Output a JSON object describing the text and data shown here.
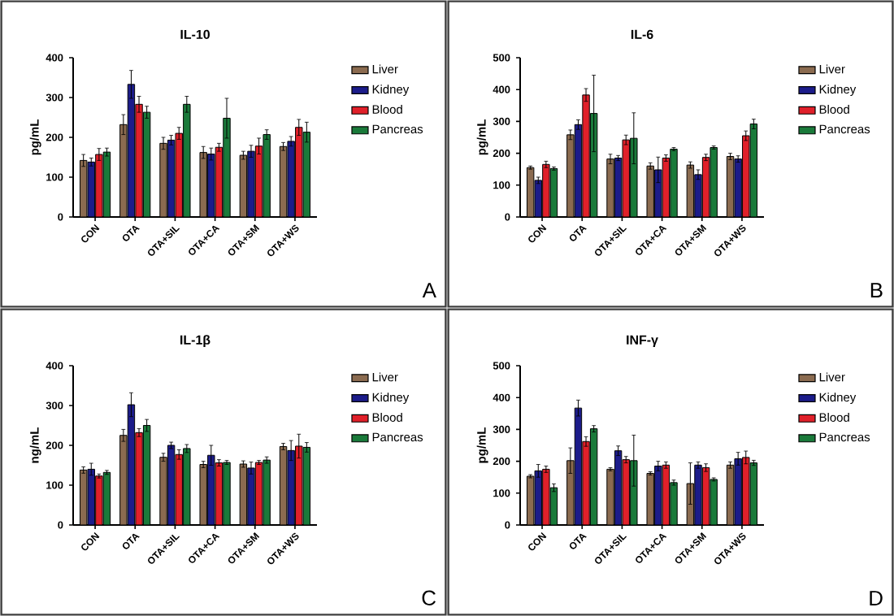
{
  "chart_data": [
    {
      "type": "bar",
      "title": "IL-10",
      "ylabel": "pg/mL",
      "categories": [
        "CON",
        "OTA",
        "OTA+SIL",
        "OTA+CA",
        "OTA+SM",
        "OTA+WS"
      ],
      "ylim": [
        0,
        400
      ],
      "yticks": [
        0,
        100,
        200,
        300,
        400
      ],
      "legend": "right",
      "annotations": [
        "A"
      ],
      "series": [
        {
          "name": "Liver",
          "color": "#8b6b50",
          "values": [
            142,
            232,
            185,
            162,
            155,
            177
          ],
          "errors": [
            15,
            25,
            15,
            15,
            10,
            10
          ]
        },
        {
          "name": "Kidney",
          "color": "#1c1c8a",
          "values": [
            138,
            333,
            193,
            158,
            165,
            190
          ],
          "errors": [
            10,
            35,
            12,
            15,
            15,
            12
          ]
        },
        {
          "name": "Blood",
          "color": "#e0202a",
          "values": [
            157,
            283,
            210,
            175,
            178,
            225
          ],
          "errors": [
            15,
            20,
            15,
            10,
            20,
            20
          ]
        },
        {
          "name": "Pancreas",
          "color": "#1a7a3a",
          "values": [
            163,
            263,
            283,
            248,
            207,
            213
          ],
          "errors": [
            10,
            15,
            20,
            50,
            12,
            25
          ]
        }
      ]
    },
    {
      "type": "bar",
      "title": "IL-6",
      "ylabel": "pg/mL",
      "categories": [
        "CON",
        "OTA",
        "OTA+SIL",
        "OTA+CA",
        "OTA+SM",
        "OTA+WS"
      ],
      "ylim": [
        0,
        500
      ],
      "yticks": [
        0,
        100,
        200,
        300,
        400,
        500
      ],
      "legend": "right",
      "annotations": [
        "B"
      ],
      "series": [
        {
          "name": "Liver",
          "color": "#8b6b50",
          "values": [
            155,
            258,
            182,
            160,
            163,
            190
          ],
          "errors": [
            5,
            15,
            15,
            10,
            10,
            10
          ]
        },
        {
          "name": "Kidney",
          "color": "#1c1c8a",
          "values": [
            115,
            290,
            185,
            148,
            133,
            182
          ],
          "errors": [
            10,
            15,
            8,
            40,
            15,
            10
          ]
        },
        {
          "name": "Blood",
          "color": "#e0202a",
          "values": [
            165,
            383,
            242,
            185,
            187,
            255
          ],
          "errors": [
            10,
            20,
            15,
            10,
            10,
            15
          ]
        },
        {
          "name": "Pancreas",
          "color": "#1a7a3a",
          "values": [
            152,
            325,
            247,
            213,
            218,
            292
          ],
          "errors": [
            5,
            120,
            80,
            5,
            5,
            15
          ]
        }
      ]
    },
    {
      "type": "bar",
      "title": "IL-1β",
      "ylabel": "ng/mL",
      "categories": [
        "CON",
        "OTA",
        "OTA+SIL",
        "OTA+CA",
        "OTA+SM",
        "OTA+WS"
      ],
      "ylim": [
        0,
        400
      ],
      "yticks": [
        0,
        100,
        200,
        300,
        400
      ],
      "legend": "right",
      "annotations": [
        "C"
      ],
      "series": [
        {
          "name": "Liver",
          "color": "#8b6b50",
          "values": [
            138,
            225,
            170,
            152,
            153,
            197
          ],
          "errors": [
            8,
            15,
            10,
            8,
            8,
            8
          ]
        },
        {
          "name": "Kidney",
          "color": "#1c1c8a",
          "values": [
            140,
            302,
            200,
            175,
            143,
            187
          ],
          "errors": [
            15,
            30,
            8,
            25,
            15,
            25
          ]
        },
        {
          "name": "Blood",
          "color": "#e0202a",
          "values": [
            123,
            232,
            177,
            156,
            157,
            198
          ],
          "errors": [
            5,
            10,
            12,
            8,
            5,
            30
          ]
        },
        {
          "name": "Pancreas",
          "color": "#1a7a3a",
          "values": [
            132,
            250,
            192,
            157,
            163,
            195
          ],
          "errors": [
            5,
            15,
            10,
            5,
            8,
            12
          ]
        }
      ]
    },
    {
      "type": "bar",
      "title": "INF-γ",
      "ylabel": "pg/mL",
      "categories": [
        "CON",
        "OTA",
        "OTA+SIL",
        "OTA+CA",
        "OTA+SM",
        "OTA+WS"
      ],
      "ylim": [
        0,
        500
      ],
      "yticks": [
        0,
        100,
        200,
        300,
        400,
        500
      ],
      "legend": "right",
      "annotations": [
        "D"
      ],
      "series": [
        {
          "name": "Liver",
          "color": "#8b6b50",
          "values": [
            153,
            202,
            175,
            162,
            130,
            188
          ],
          "errors": [
            5,
            40,
            5,
            5,
            65,
            10
          ]
        },
        {
          "name": "Kidney",
          "color": "#1c1c8a",
          "values": [
            170,
            367,
            233,
            185,
            188,
            208
          ],
          "errors": [
            20,
            25,
            15,
            15,
            10,
            20
          ]
        },
        {
          "name": "Blood",
          "color": "#e0202a",
          "values": [
            175,
            262,
            205,
            188,
            180,
            212
          ],
          "errors": [
            10,
            15,
            10,
            10,
            12,
            20
          ]
        },
        {
          "name": "Pancreas",
          "color": "#1a7a3a",
          "values": [
            117,
            302,
            202,
            133,
            143,
            195
          ],
          "errors": [
            12,
            10,
            80,
            8,
            5,
            8
          ]
        }
      ]
    }
  ]
}
